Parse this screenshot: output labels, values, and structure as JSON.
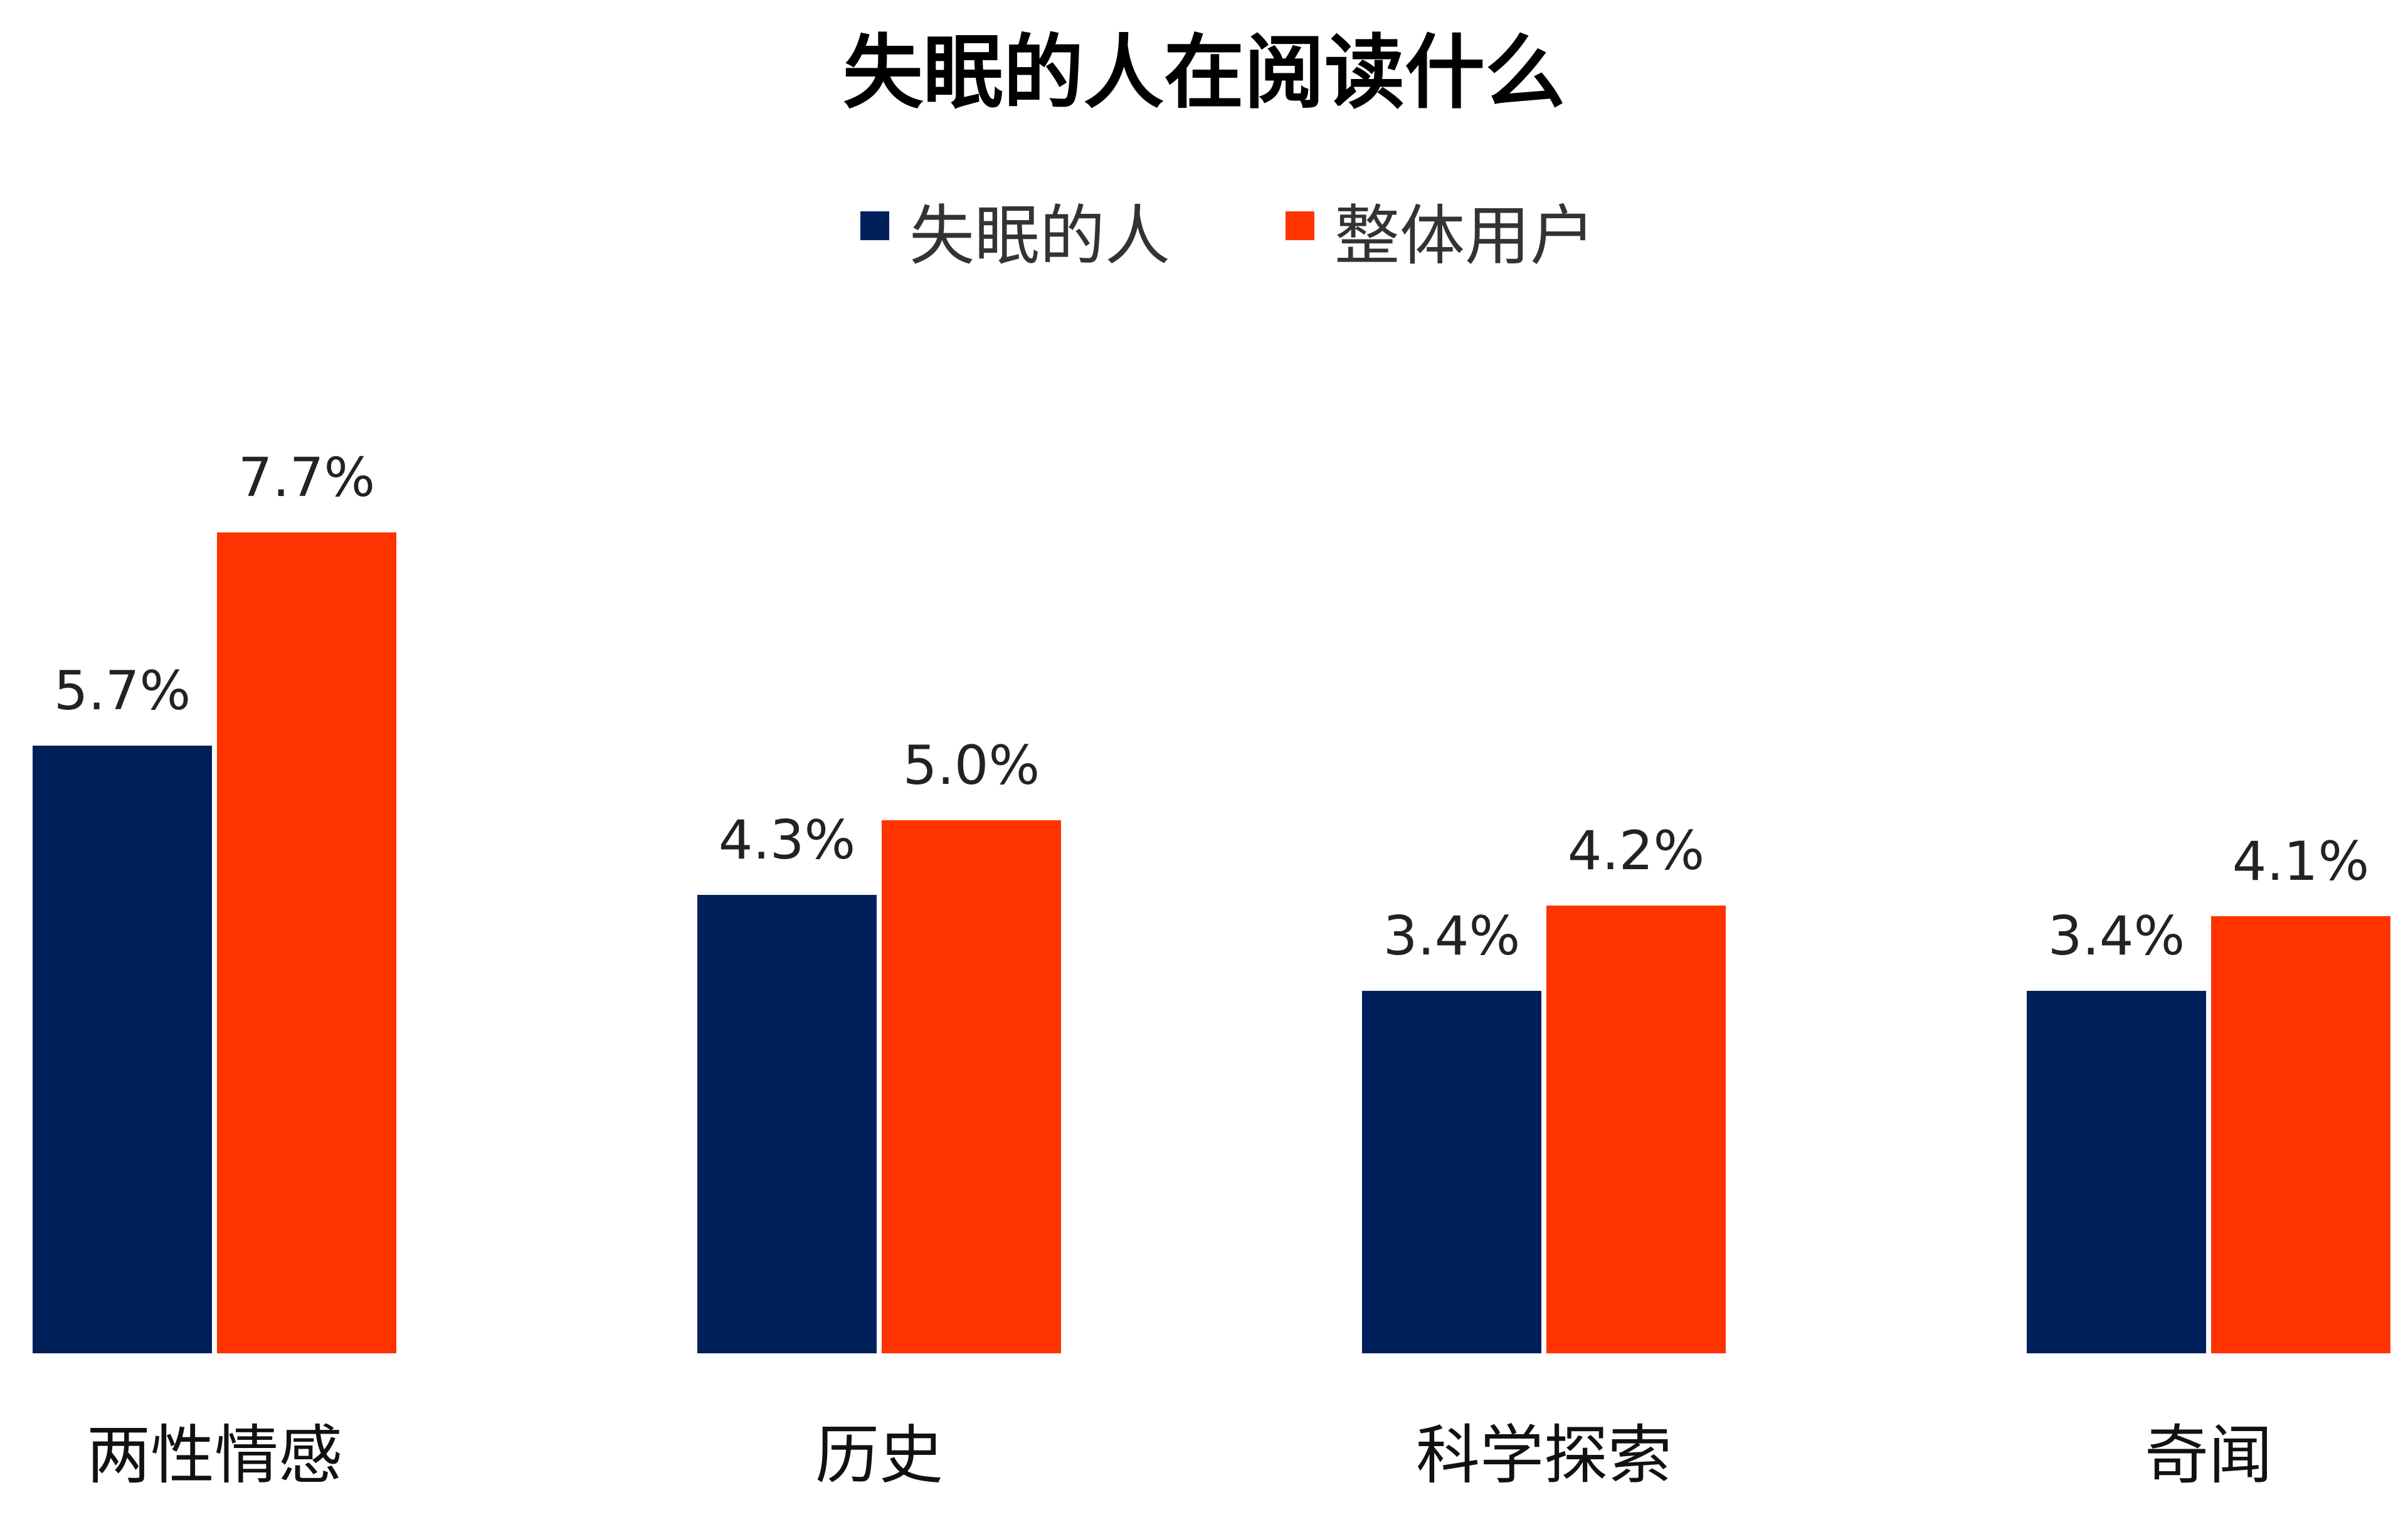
{
  "chart_data": {
    "type": "bar",
    "title": "失眠的人在阅读什么",
    "xlabel": "",
    "ylabel": "",
    "categories": [
      "两性情感",
      "历史",
      "科学探索",
      "奇闻"
    ],
    "series": [
      {
        "name": "失眠的人",
        "color": "#00205B",
        "values": [
          5.7,
          4.3,
          3.4,
          3.4
        ],
        "labels": [
          "5.7%",
          "4.3%",
          "3.4%",
          "3.4%"
        ]
      },
      {
        "name": "整体用户",
        "color": "#FF3300",
        "values": [
          7.7,
          5.0,
          4.2,
          4.1
        ],
        "labels": [
          "7.7%",
          "5.0%",
          "4.2%",
          "4.1%"
        ]
      }
    ],
    "ylim": [
      0,
      8
    ],
    "grid": false,
    "legend": "top-center"
  }
}
